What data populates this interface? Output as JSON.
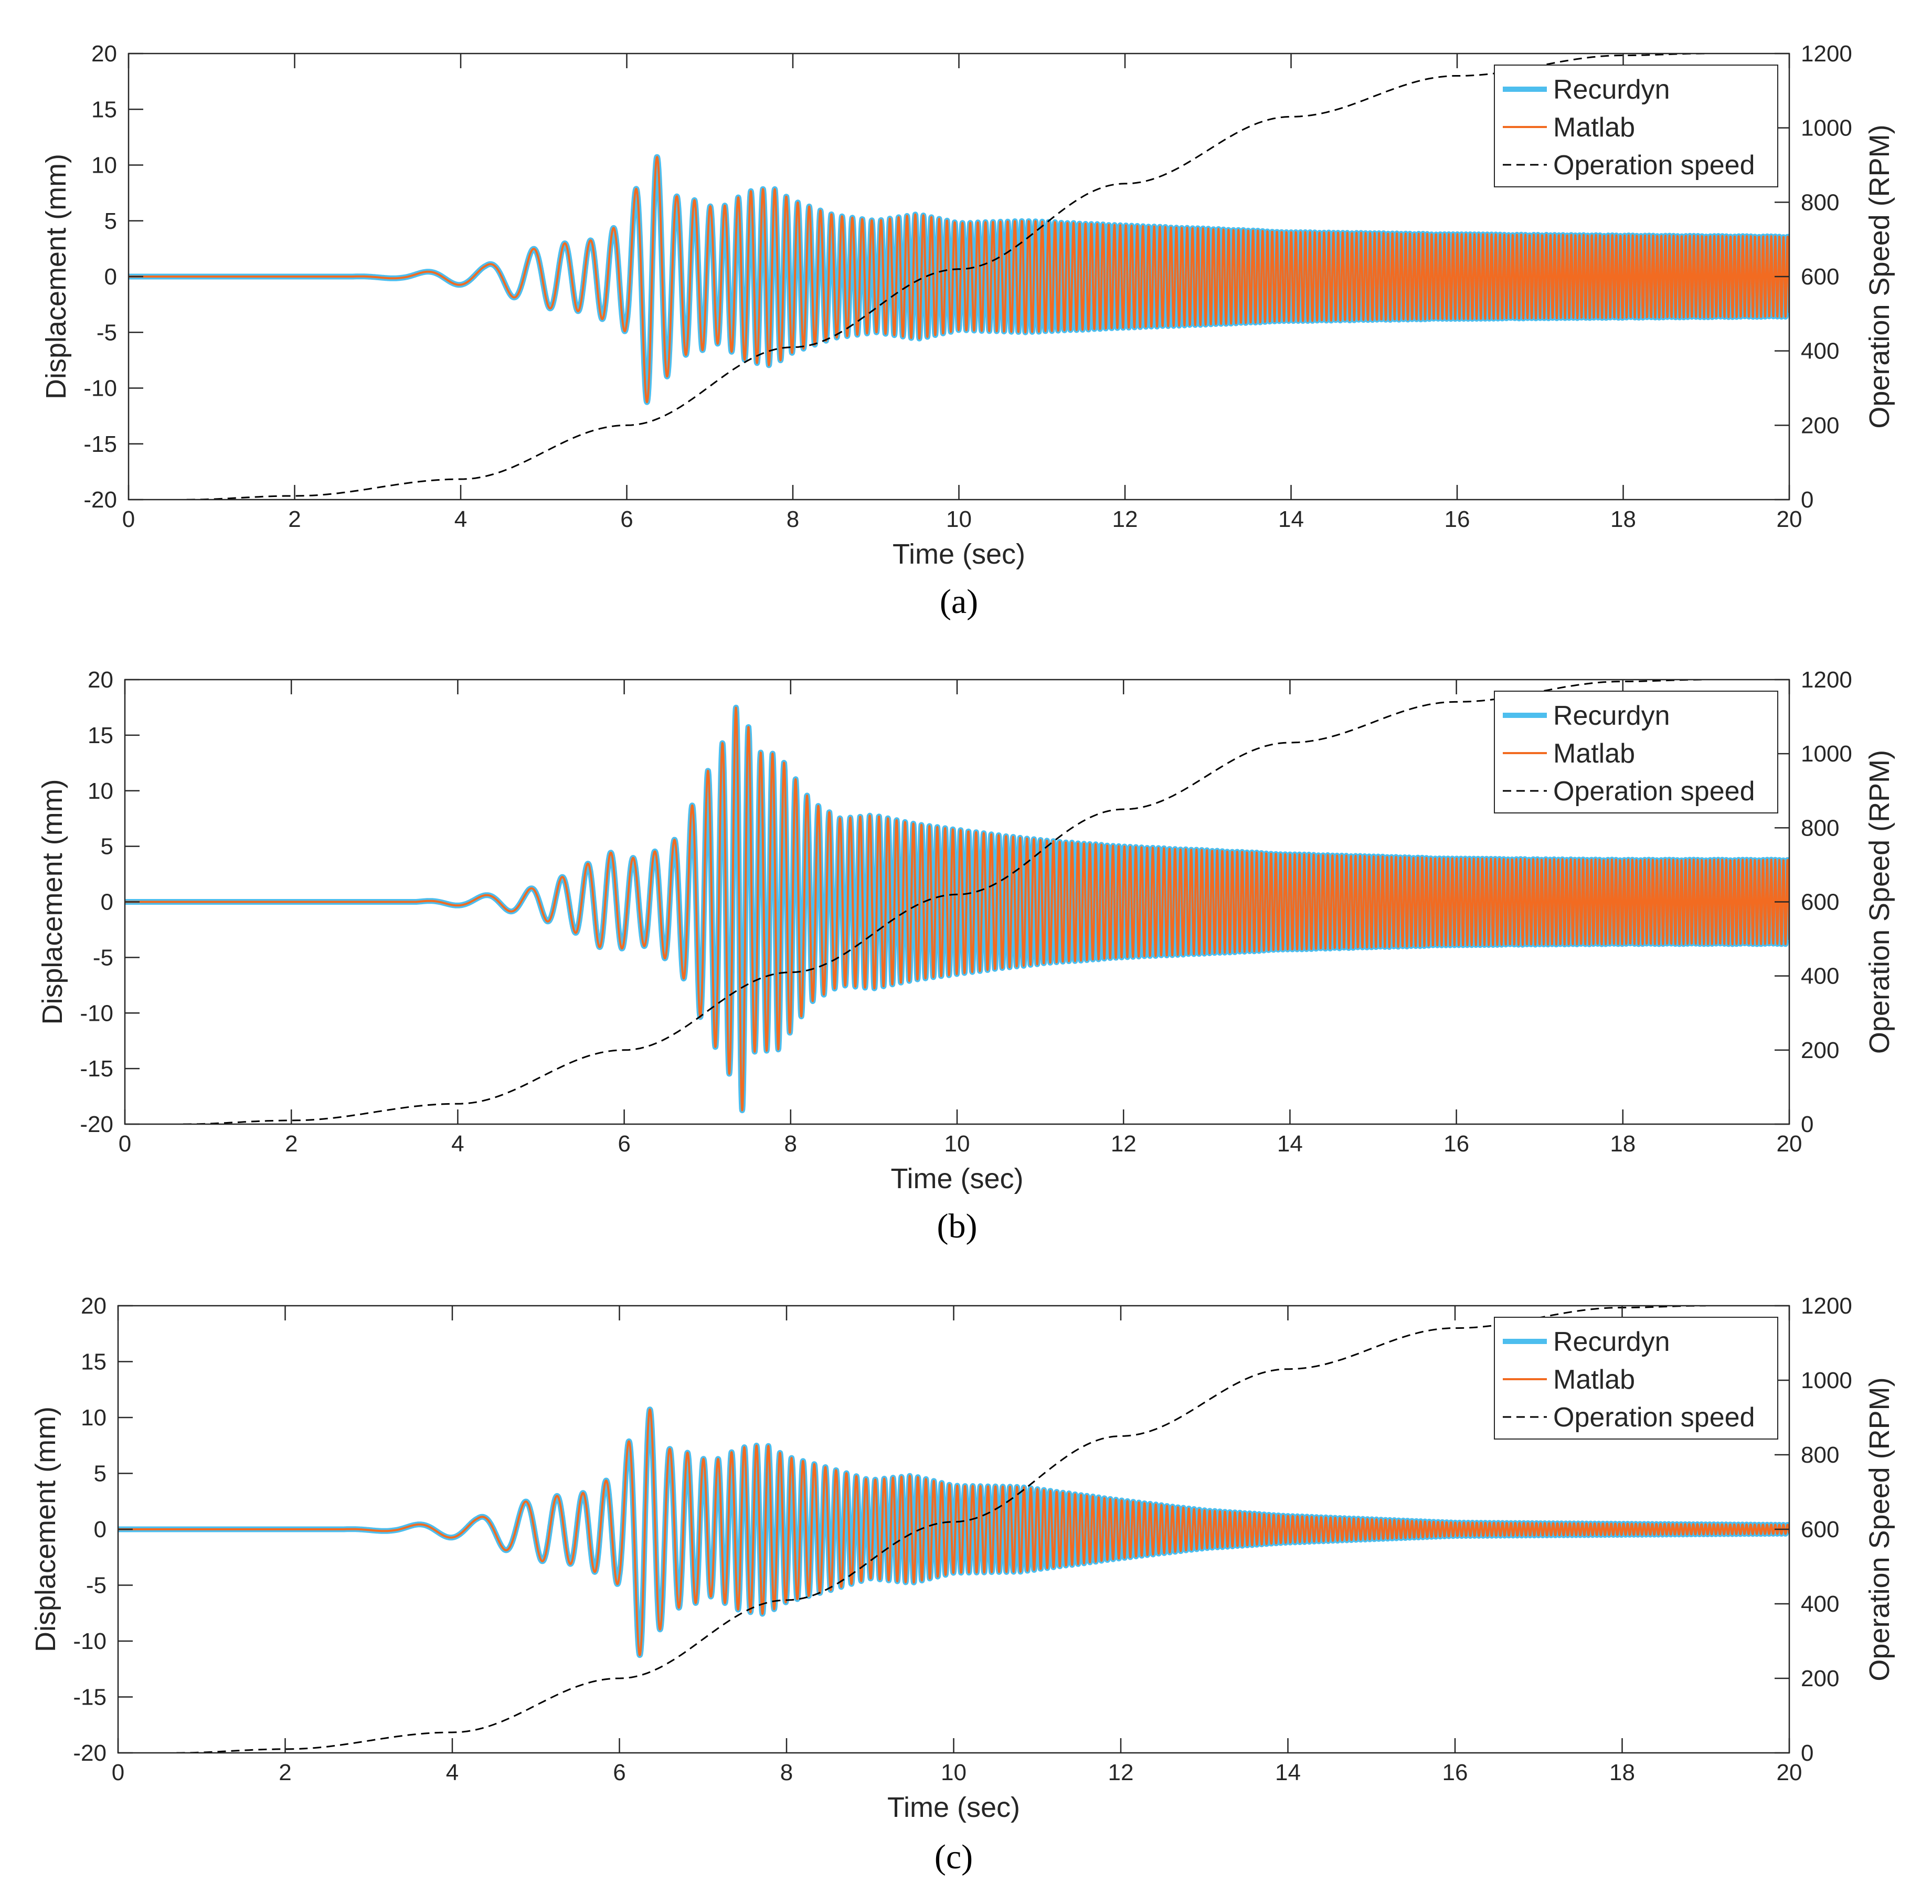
{
  "figure": {
    "panel_labels": [
      "(a)",
      "(b)",
      "(c)"
    ]
  },
  "colors": {
    "recurdyn": "#4DBEEE",
    "matlab": "#F26B21",
    "operation_speed": "#000000",
    "axes": "#262626"
  },
  "chart_data": [
    {
      "type": "line",
      "panel": "(a)",
      "xlabel": "Time (sec)",
      "ylabel": "Displacement (mm)",
      "y2label": "Operation Speed (RPM)",
      "xlim": [
        0,
        20
      ],
      "ylim": [
        -20,
        20
      ],
      "y2lim": [
        0,
        1200
      ],
      "x_ticks": [
        0,
        2,
        4,
        6,
        8,
        10,
        12,
        14,
        16,
        18,
        20
      ],
      "y_ticks": [
        -20,
        -15,
        -10,
        -5,
        0,
        5,
        10,
        15,
        20
      ],
      "y2_ticks": [
        0,
        200,
        400,
        600,
        800,
        1000,
        1200
      ],
      "legend": [
        "Recurdyn",
        "Matlab",
        "Operation speed"
      ],
      "legend_position": "top-right",
      "series": [
        {
          "name": "Recurdyn",
          "style": "solid-thick",
          "sampled_peaks": {
            "t": [
              3.3,
              4.3,
              5.0,
              5.55,
              6.0,
              6.27,
              6.42,
              6.6,
              6.85,
              7.1,
              7.45,
              7.75,
              8.0,
              8.5,
              9.0,
              9.5,
              10.0,
              10.8,
              12.0,
              14.0,
              16.0,
              18.0,
              20.0
            ],
            "y": [
              0.2,
              1.0,
              2.8,
              3.2,
              5.0,
              12.0,
              -10.0,
              7.2,
              6.8,
              6.0,
              7.6,
              -8.0,
              6.8,
              5.5,
              5.0,
              5.6,
              4.8,
              5.0,
              4.6,
              4.0,
              3.8,
              3.7,
              3.6
            ]
          }
        },
        {
          "name": "Matlab",
          "style": "solid-thin",
          "sampled_peaks": {
            "t": [
              3.3,
              4.3,
              5.0,
              5.55,
              6.0,
              6.27,
              6.42,
              6.6,
              6.85,
              7.1,
              7.45,
              7.75,
              8.0,
              8.5,
              9.0,
              9.5,
              10.0,
              10.8,
              12.0,
              14.0,
              16.0,
              18.0,
              20.0
            ],
            "y": [
              0.2,
              1.0,
              2.8,
              3.2,
              5.0,
              12.0,
              -10.0,
              7.2,
              6.8,
              6.0,
              7.6,
              -8.0,
              6.8,
              5.5,
              5.0,
              5.6,
              4.8,
              5.0,
              4.6,
              4.0,
              3.8,
              3.7,
              3.6
            ]
          }
        },
        {
          "name": "Operation speed",
          "axis": "right",
          "style": "dashed",
          "x": [
            0.7,
            2,
            4,
            6,
            8,
            10,
            12,
            14,
            16,
            18,
            19
          ],
          "y": [
            0,
            10,
            55,
            200,
            410,
            620,
            850,
            1030,
            1140,
            1195,
            1200
          ]
        }
      ]
    },
    {
      "type": "line",
      "panel": "(b)",
      "xlabel": "Time (sec)",
      "ylabel": "Displacement (mm)",
      "y2label": "Operation Speed (RPM)",
      "xlim": [
        0,
        20
      ],
      "ylim": [
        -20,
        20
      ],
      "y2lim": [
        0,
        1200
      ],
      "x_ticks": [
        0,
        2,
        4,
        6,
        8,
        10,
        12,
        14,
        16,
        18,
        20
      ],
      "y_ticks": [
        -20,
        -15,
        -10,
        -5,
        0,
        5,
        10,
        15,
        20
      ],
      "y2_ticks": [
        0,
        200,
        400,
        600,
        800,
        1000,
        1200
      ],
      "legend": [
        "Recurdyn",
        "Matlab",
        "Operation speed"
      ],
      "legend_position": "top-right",
      "series": [
        {
          "name": "Recurdyn",
          "style": "solid-thick",
          "sampled_peaks": {
            "t": [
              4.1,
              4.8,
              5.35,
              5.8,
              6.2,
              6.65,
              6.95,
              7.3,
              7.4,
              7.55,
              7.85,
              8.25,
              8.6,
              9.0,
              9.5,
              10.0,
              10.5,
              11.1,
              12.0,
              14.0,
              16.0,
              18.0,
              20.0
            ],
            "y": [
              0.4,
              1.0,
              2.5,
              4.5,
              3.8,
              5.8,
              11.0,
              -16.0,
              19.5,
              -13.5,
              13.3,
              9.0,
              7.5,
              7.8,
              7.0,
              6.5,
              6.0,
              5.5,
              5.0,
              4.3,
              3.9,
              3.8,
              3.8
            ]
          }
        },
        {
          "name": "Matlab",
          "style": "solid-thin",
          "sampled_peaks": {
            "t": [
              4.1,
              4.8,
              5.35,
              5.8,
              6.2,
              6.65,
              6.95,
              7.3,
              7.4,
              7.55,
              7.85,
              8.25,
              8.6,
              9.0,
              9.5,
              10.0,
              10.5,
              11.1,
              12.0,
              14.0,
              16.0,
              18.0,
              20.0
            ],
            "y": [
              0.4,
              1.0,
              2.5,
              4.5,
              3.8,
              5.8,
              11.0,
              -16.0,
              19.5,
              -13.5,
              13.3,
              9.0,
              7.5,
              7.8,
              7.0,
              6.5,
              6.0,
              5.5,
              5.0,
              4.3,
              3.9,
              3.8,
              3.8
            ]
          }
        },
        {
          "name": "Operation speed",
          "axis": "right",
          "style": "dashed",
          "x": [
            0.7,
            2,
            4,
            6,
            8,
            10,
            12,
            14,
            16,
            18,
            19
          ],
          "y": [
            0,
            10,
            55,
            200,
            410,
            620,
            850,
            1030,
            1140,
            1195,
            1200
          ]
        }
      ]
    },
    {
      "type": "line",
      "panel": "(c)",
      "xlabel": "Time (sec)",
      "ylabel": "Displacement (mm)",
      "y2label": "Operation Speed (RPM)",
      "xlim": [
        0,
        20
      ],
      "ylim": [
        -20,
        20
      ],
      "y2lim": [
        0,
        1200
      ],
      "x_ticks": [
        0,
        2,
        4,
        6,
        8,
        10,
        12,
        14,
        16,
        18,
        20
      ],
      "y_ticks": [
        -20,
        -15,
        -10,
        -5,
        0,
        5,
        10,
        15,
        20
      ],
      "y2_ticks": [
        0,
        200,
        400,
        600,
        800,
        1000,
        1200
      ],
      "legend": [
        "Recurdyn",
        "Matlab",
        "Operation speed"
      ],
      "legend_position": "top-right",
      "series": [
        {
          "name": "Recurdyn",
          "style": "solid-thick",
          "sampled_peaks": {
            "t": [
              3.3,
              4.3,
              5.0,
              5.55,
              6.0,
              6.27,
              6.42,
              6.6,
              6.85,
              7.1,
              7.45,
              7.75,
              8.0,
              8.5,
              9.0,
              9.5,
              10.0,
              10.8,
              12.0,
              13.0,
              14.0,
              15.0,
              16.0,
              18.0,
              20.0
            ],
            "y": [
              0.2,
              1.0,
              2.8,
              3.2,
              5.0,
              12.0,
              -10.0,
              7.2,
              6.8,
              6.0,
              7.3,
              -7.6,
              6.5,
              5.5,
              4.4,
              4.8,
              3.9,
              3.8,
              2.6,
              1.7,
              1.2,
              0.9,
              0.6,
              0.5,
              0.4
            ]
          }
        },
        {
          "name": "Matlab",
          "style": "solid-thin",
          "sampled_peaks": {
            "t": [
              3.3,
              4.3,
              5.0,
              5.55,
              6.0,
              6.27,
              6.42,
              6.6,
              6.85,
              7.1,
              7.45,
              7.75,
              8.0,
              8.5,
              9.0,
              9.5,
              10.0,
              10.8,
              12.0,
              13.0,
              14.0,
              15.0,
              16.0,
              18.0,
              20.0
            ],
            "y": [
              0.2,
              1.0,
              2.8,
              3.2,
              5.0,
              12.0,
              -10.0,
              7.2,
              6.8,
              6.0,
              7.3,
              -7.6,
              6.5,
              5.5,
              4.4,
              4.8,
              3.9,
              3.8,
              2.6,
              1.7,
              1.2,
              0.9,
              0.6,
              0.5,
              0.4
            ]
          }
        },
        {
          "name": "Operation speed",
          "axis": "right",
          "style": "dashed",
          "x": [
            0.7,
            2,
            4,
            6,
            8,
            10,
            12,
            14,
            16,
            18,
            19
          ],
          "y": [
            0,
            10,
            55,
            200,
            410,
            620,
            850,
            1030,
            1140,
            1195,
            1200
          ]
        }
      ]
    }
  ]
}
